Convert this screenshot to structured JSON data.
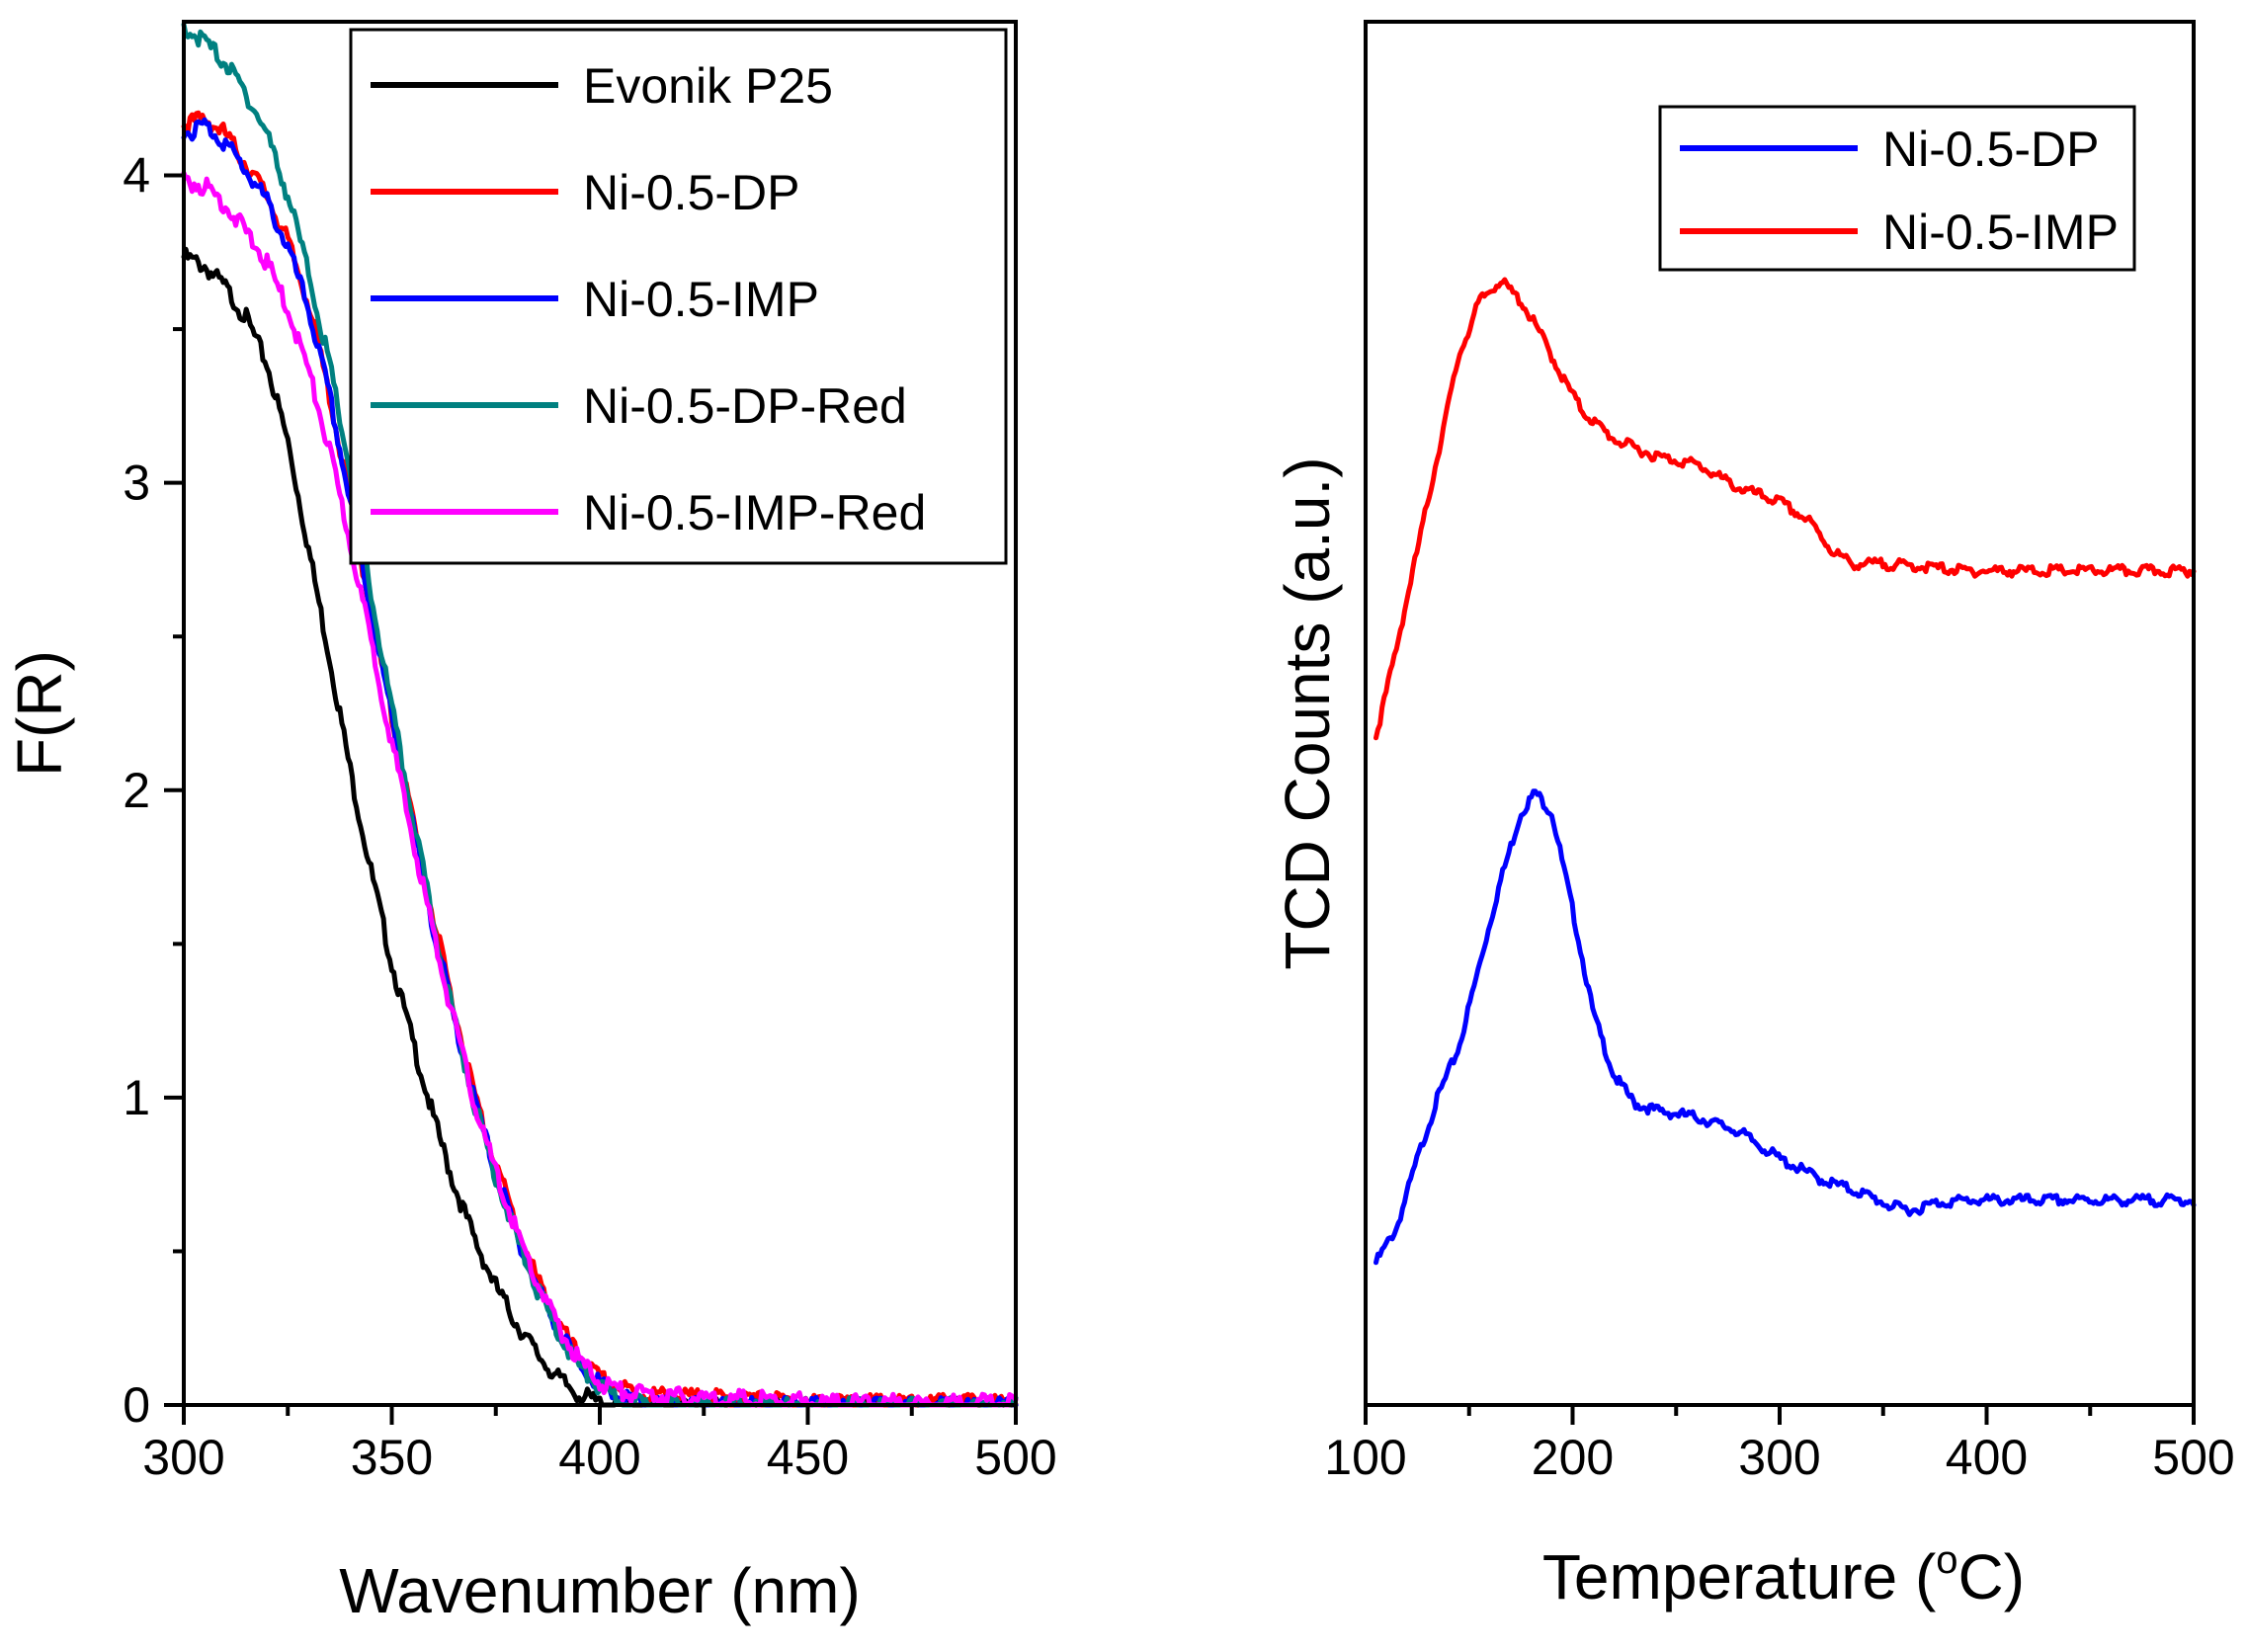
{
  "chart_data": [
    {
      "type": "line",
      "xlabel": "Wavenumber (nm)",
      "ylabel": "F(R)",
      "xlim": [
        300,
        500
      ],
      "ylim": [
        0,
        4.5
      ],
      "xticks": [
        300,
        350,
        400,
        450,
        500
      ],
      "yticks": [
        0,
        1,
        2,
        3,
        4
      ],
      "grid": false,
      "legend_position": "top-right",
      "series": [
        {
          "name": "Evonik P25",
          "color": "#000000",
          "x": [
            300,
            305,
            310,
            315,
            320,
            325,
            330,
            335,
            340,
            345,
            350,
            355,
            360,
            365,
            370,
            375,
            380,
            385,
            390,
            395,
            400,
            405,
            410,
            420,
            440,
            460,
            480,
            500
          ],
          "y": [
            3.75,
            3.72,
            3.65,
            3.55,
            3.4,
            3.15,
            2.8,
            2.45,
            2.08,
            1.75,
            1.45,
            1.2,
            0.95,
            0.73,
            0.55,
            0.4,
            0.28,
            0.18,
            0.1,
            0.05,
            0.02,
            0.01,
            0.01,
            0.01,
            0.01,
            0.01,
            0.01,
            0.01
          ]
        },
        {
          "name": "Ni-0.5-DP",
          "color": "#ff0000",
          "x": [
            300,
            305,
            310,
            315,
            320,
            325,
            330,
            335,
            340,
            345,
            350,
            355,
            360,
            365,
            370,
            375,
            380,
            385,
            390,
            395,
            400,
            405,
            410,
            420,
            440,
            460,
            480,
            500
          ],
          "y": [
            4.18,
            4.2,
            4.15,
            4.05,
            3.95,
            3.8,
            3.6,
            3.3,
            2.95,
            2.6,
            2.25,
            1.92,
            1.6,
            1.3,
            1.02,
            0.8,
            0.6,
            0.42,
            0.28,
            0.17,
            0.1,
            0.07,
            0.05,
            0.04,
            0.03,
            0.02,
            0.02,
            0.02
          ]
        },
        {
          "name": "Ni-0.5-IMP",
          "color": "#0000ff",
          "x": [
            300,
            305,
            310,
            315,
            320,
            325,
            330,
            335,
            340,
            345,
            350,
            355,
            360,
            365,
            370,
            375,
            380,
            385,
            390,
            395,
            400,
            405,
            410,
            420,
            440,
            460,
            480,
            500
          ],
          "y": [
            4.15,
            4.18,
            4.12,
            4.03,
            3.93,
            3.78,
            3.58,
            3.3,
            2.95,
            2.6,
            2.25,
            1.9,
            1.57,
            1.27,
            1.0,
            0.77,
            0.57,
            0.4,
            0.26,
            0.15,
            0.08,
            0.04,
            0.02,
            0.01,
            0.01,
            0.01,
            0.01,
            0.01
          ]
        },
        {
          "name": "Ni-0.5-DP-Red",
          "color": "#008080",
          "x": [
            300,
            305,
            310,
            315,
            320,
            325,
            330,
            335,
            340,
            345,
            350,
            355,
            360,
            365,
            370,
            375,
            380,
            385,
            390,
            395,
            400,
            405,
            410,
            420,
            440,
            460,
            480,
            500
          ],
          "y": [
            4.5,
            4.45,
            4.38,
            4.28,
            4.15,
            3.95,
            3.7,
            3.4,
            3.05,
            2.65,
            2.28,
            1.93,
            1.58,
            1.27,
            0.99,
            0.76,
            0.56,
            0.39,
            0.25,
            0.14,
            0.07,
            0.03,
            0.02,
            0.01,
            0.01,
            0.01,
            0.01,
            0.01
          ]
        },
        {
          "name": "Ni-0.5-IMP-Red",
          "color": "#ff00ff",
          "x": [
            300,
            305,
            310,
            315,
            320,
            325,
            330,
            335,
            340,
            345,
            350,
            355,
            360,
            365,
            370,
            375,
            380,
            385,
            390,
            395,
            400,
            405,
            410,
            420,
            440,
            460,
            480,
            500
          ],
          "y": [
            4.0,
            3.98,
            3.92,
            3.83,
            3.73,
            3.58,
            3.38,
            3.12,
            2.82,
            2.5,
            2.17,
            1.86,
            1.55,
            1.26,
            0.99,
            0.77,
            0.58,
            0.41,
            0.27,
            0.16,
            0.09,
            0.06,
            0.05,
            0.04,
            0.03,
            0.02,
            0.02,
            0.02
          ]
        }
      ]
    },
    {
      "type": "line",
      "xlabel_prefix": "Temperature (",
      "xlabel_degree": "o",
      "xlabel_suffix": "C)",
      "ylabel": "TCD Counts (a.u.)",
      "xlim": [
        100,
        500
      ],
      "ylim": [
        0,
        10
      ],
      "xticks": [
        100,
        200,
        300,
        400,
        500
      ],
      "yticks": [],
      "grid": false,
      "legend_position": "top-right",
      "series": [
        {
          "name": "Ni-0.5-DP",
          "color": "#0000ff",
          "x": [
            105,
            115,
            125,
            135,
            145,
            155,
            165,
            175,
            182,
            190,
            200,
            210,
            220,
            230,
            240,
            260,
            280,
            300,
            320,
            340,
            355,
            365,
            375,
            390,
            420,
            460,
            500
          ],
          "y": [
            1.05,
            1.3,
            1.8,
            2.25,
            2.6,
            3.2,
            3.8,
            4.3,
            4.45,
            4.3,
            3.6,
            2.85,
            2.4,
            2.2,
            2.15,
            2.1,
            2.0,
            1.8,
            1.65,
            1.55,
            1.45,
            1.43,
            1.48,
            1.5,
            1.5,
            1.5,
            1.5
          ]
        },
        {
          "name": "Ni-0.5-IMP",
          "color": "#ff0000",
          "x": [
            105,
            115,
            125,
            135,
            145,
            155,
            165,
            175,
            185,
            195,
            205,
            220,
            240,
            260,
            280,
            300,
            315,
            325,
            335,
            350,
            370,
            390,
            420,
            460,
            500
          ],
          "y": [
            4.85,
            5.5,
            6.2,
            6.9,
            7.6,
            8.0,
            8.15,
            8.0,
            7.75,
            7.45,
            7.2,
            7.0,
            6.88,
            6.82,
            6.65,
            6.55,
            6.4,
            6.2,
            6.1,
            6.1,
            6.08,
            6.05,
            6.05,
            6.05,
            6.05
          ]
        }
      ]
    }
  ]
}
